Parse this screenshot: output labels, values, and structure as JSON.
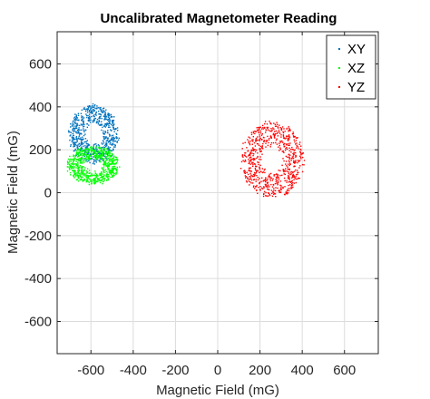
{
  "chart_data": {
    "type": "scatter",
    "title": "Uncalibrated Magnetometer Reading",
    "xlabel": "Magnetic Field (mG)",
    "ylabel": "Magnetic Field (mG)",
    "xlim": [
      -760,
      760
    ],
    "ylim": [
      -750,
      750
    ],
    "xticks": [
      -600,
      -400,
      -200,
      0,
      200,
      400,
      600
    ],
    "yticks": [
      -600,
      -400,
      -200,
      0,
      200,
      400,
      600
    ],
    "grid": true,
    "legend_position": "top-right",
    "series": [
      {
        "name": "XY",
        "color": "#0072BD",
        "center": [
          -590,
          275
        ],
        "radius": [
          115,
          135
        ]
      },
      {
        "name": "XZ",
        "color": "#00FF00",
        "center": [
          -590,
          130
        ],
        "radius": [
          120,
          85
        ]
      },
      {
        "name": "YZ",
        "color": "#FF0000",
        "center": [
          255,
          155
        ],
        "radius": [
          145,
          175
        ]
      }
    ]
  }
}
